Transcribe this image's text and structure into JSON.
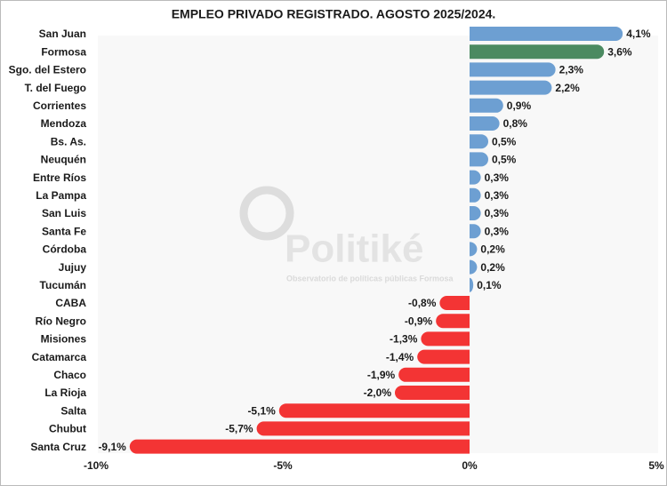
{
  "chart_data": {
    "type": "bar",
    "orientation": "horizontal",
    "title": "EMPLEO PRIVADO REGISTRADO. AGOSTO 2025/2024.",
    "watermark": "Politiké",
    "watermark_subtitle": "Observatorio de políticas públicas Formosa",
    "categories": [
      "San Juan",
      "Formosa",
      "Sgo. del Estero",
      "T. del Fuego",
      "Corrientes",
      "Mendoza",
      "Bs. As.",
      "Neuquén",
      "Entre Ríos",
      "La Pampa",
      "San Luis",
      "Santa Fe",
      "Córdoba",
      "Jujuy",
      "Tucumán",
      "CABA",
      "Río Negro",
      "Misiones",
      "Catamarca",
      "Chaco",
      "La Rioja",
      "Salta",
      "Chubut",
      "Santa Cruz"
    ],
    "values": [
      4.1,
      3.6,
      2.3,
      2.2,
      0.9,
      0.8,
      0.5,
      0.5,
      0.3,
      0.3,
      0.3,
      0.3,
      0.2,
      0.2,
      0.1,
      -0.8,
      -0.9,
      -1.3,
      -1.4,
      -1.9,
      -2.0,
      -5.1,
      -5.7,
      -9.1
    ],
    "value_labels": [
      "4,1%",
      "3,6%",
      "2,3%",
      "2,2%",
      "0,9%",
      "0,8%",
      "0,5%",
      "0,5%",
      "0,3%",
      "0,3%",
      "0,3%",
      "0,3%",
      "0,2%",
      "0,2%",
      "0,1%",
      "-0,8%",
      "-0,9%",
      "-1,3%",
      "-1,4%",
      "-1,9%",
      "-2,0%",
      "-5,1%",
      "-5,7%",
      "-9,1%"
    ],
    "colors": [
      "#6d9fd2",
      "#4b8a61",
      "#6d9fd2",
      "#6d9fd2",
      "#6d9fd2",
      "#6d9fd2",
      "#6d9fd2",
      "#6d9fd2",
      "#6d9fd2",
      "#6d9fd2",
      "#6d9fd2",
      "#6d9fd2",
      "#6d9fd2",
      "#6d9fd2",
      "#6d9fd2",
      "#f33434",
      "#f33434",
      "#f33434",
      "#f33434",
      "#f33434",
      "#f33434",
      "#f33434",
      "#f33434",
      "#f33434"
    ],
    "xlim": [
      -10,
      5
    ],
    "xticks": [
      {
        "value": -10,
        "label": "-10%"
      },
      {
        "value": -5,
        "label": "-5%"
      },
      {
        "value": 0,
        "label": "0%"
      },
      {
        "value": 5,
        "label": "5%"
      }
    ],
    "grid": false
  }
}
